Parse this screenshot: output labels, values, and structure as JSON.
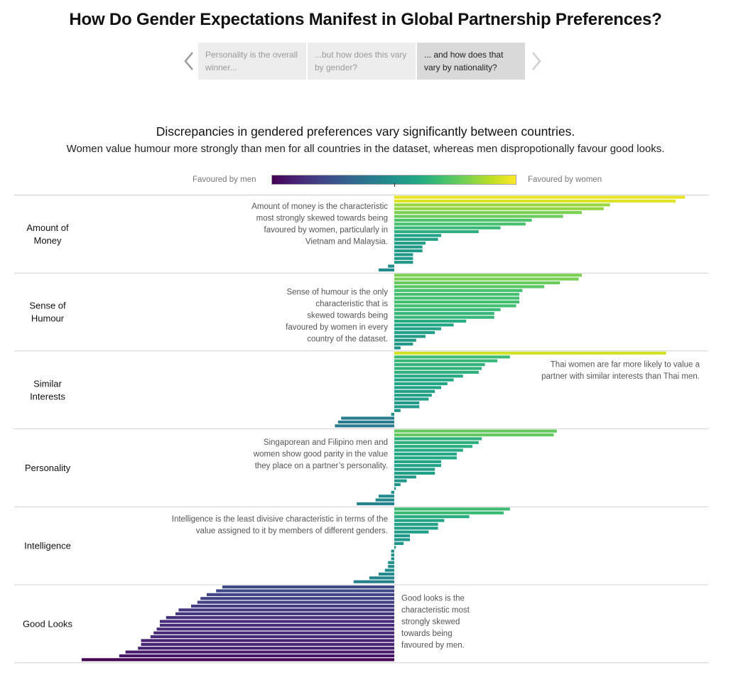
{
  "header": {
    "title": "How Do Gender Expectations Manifest in Global Partnership Preferences?"
  },
  "story_nav": {
    "prev_icon": "chevron-left-icon",
    "next_icon": "chevron-right-icon",
    "points": [
      {
        "label": "Personality is the overall winner...",
        "active": false
      },
      {
        "label": "...but how does this vary by gender?",
        "active": false
      },
      {
        "label": "... and how does that vary by nationality?",
        "active": true
      }
    ]
  },
  "legend": {
    "left_label": "Favoured by men",
    "right_label": "Favoured by women",
    "colors": [
      "#440154",
      "#21918c",
      "#fde725"
    ]
  },
  "chart_data": {
    "type": "bar",
    "orientation": "horizontal",
    "title": "Discrepancies in gendered preferences vary significantly between countries.",
    "subtitle": "Women value humour more strongly than men for all countries in the dataset, whereas men dispropotionally favour good looks.",
    "xlabel": "",
    "ylabel": "",
    "value_note": "relative preference gap (women minus men), normalized to largest absolute gap = 1; negative = favoured by men",
    "xlim": [
      -1.0,
      1.0
    ],
    "grid": false,
    "legend_position": "top-center",
    "groups": [
      {
        "label": "Amount of Money",
        "label_lines": [
          "Amount of",
          "Money"
        ],
        "annotation": [
          "Amount of money is the characteristic",
          "most strongly skewed towards being",
          "favoured by women, particularly in",
          "Vietnam and Malaysia."
        ],
        "annotation_side": "left",
        "values": [
          0.93,
          0.9,
          0.69,
          0.67,
          0.6,
          0.54,
          0.44,
          0.42,
          0.34,
          0.27,
          0.15,
          0.14,
          0.1,
          0.09,
          0.09,
          0.06,
          0.06,
          0.06,
          -0.02,
          -0.05
        ]
      },
      {
        "label": "Sense of Humour",
        "label_lines": [
          "Sense of",
          "Humour"
        ],
        "annotation": [
          "Sense of humour is the only",
          "characteristic that is",
          "skewed towards being",
          "favoured by women in every",
          "country of the dataset."
        ],
        "annotation_side": "left",
        "values": [
          0.6,
          0.59,
          0.53,
          0.48,
          0.41,
          0.4,
          0.4,
          0.4,
          0.39,
          0.34,
          0.32,
          0.32,
          0.23,
          0.19,
          0.15,
          0.13,
          0.1,
          0.07,
          0.06,
          0.02
        ]
      },
      {
        "label": "Similar Interests",
        "label_lines": [
          "Similar",
          "Interests"
        ],
        "annotation": [
          "Thai women are far more likely to value a",
          "partner with similar interests than Thai men."
        ],
        "annotation_side": "right",
        "values": [
          0.87,
          0.37,
          0.33,
          0.29,
          0.28,
          0.27,
          0.22,
          0.19,
          0.17,
          0.15,
          0.13,
          0.12,
          0.11,
          0.08,
          0.08,
          0.02,
          -0.01,
          -0.17,
          -0.18,
          -0.19
        ]
      },
      {
        "label": "Personality",
        "label_lines": [
          "Personality"
        ],
        "annotation": [
          "Singaporean and Filipino men and",
          "women show good parity in the value",
          "they place on a partner’s personality."
        ],
        "annotation_side": "left",
        "values": [
          0.52,
          0.51,
          0.28,
          0.27,
          0.25,
          0.22,
          0.2,
          0.2,
          0.15,
          0.15,
          0.13,
          0.13,
          0.07,
          0.04,
          0.02,
          0.005,
          -0.01,
          -0.05,
          -0.06,
          -0.12
        ]
      },
      {
        "label": "Intelligence",
        "label_lines": [
          "Intelligence"
        ],
        "annotation": [
          "Intelligence is the least divisive characteristic in terms of the",
          "value assigned to it by members of different genders."
        ],
        "annotation_side": "left",
        "values": [
          0.37,
          0.35,
          0.24,
          0.16,
          0.14,
          0.14,
          0.11,
          0.05,
          0.05,
          0.03,
          0.005,
          -0.01,
          -0.01,
          -0.01,
          -0.02,
          -0.02,
          -0.03,
          -0.05,
          -0.08,
          -0.13
        ]
      },
      {
        "label": "Good Looks",
        "label_lines": [
          "Good Looks"
        ],
        "annotation": [
          "Good looks is the",
          "characteristic most",
          "strongly skewed",
          "towards being",
          "favoured by men."
        ],
        "annotation_side": "right",
        "values": [
          -0.55,
          -0.57,
          -0.6,
          -0.62,
          -0.63,
          -0.65,
          -0.69,
          -0.7,
          -0.73,
          -0.75,
          -0.75,
          -0.76,
          -0.77,
          -0.78,
          -0.81,
          -0.81,
          -0.82,
          -0.86,
          -0.88,
          -1.0
        ]
      }
    ]
  }
}
